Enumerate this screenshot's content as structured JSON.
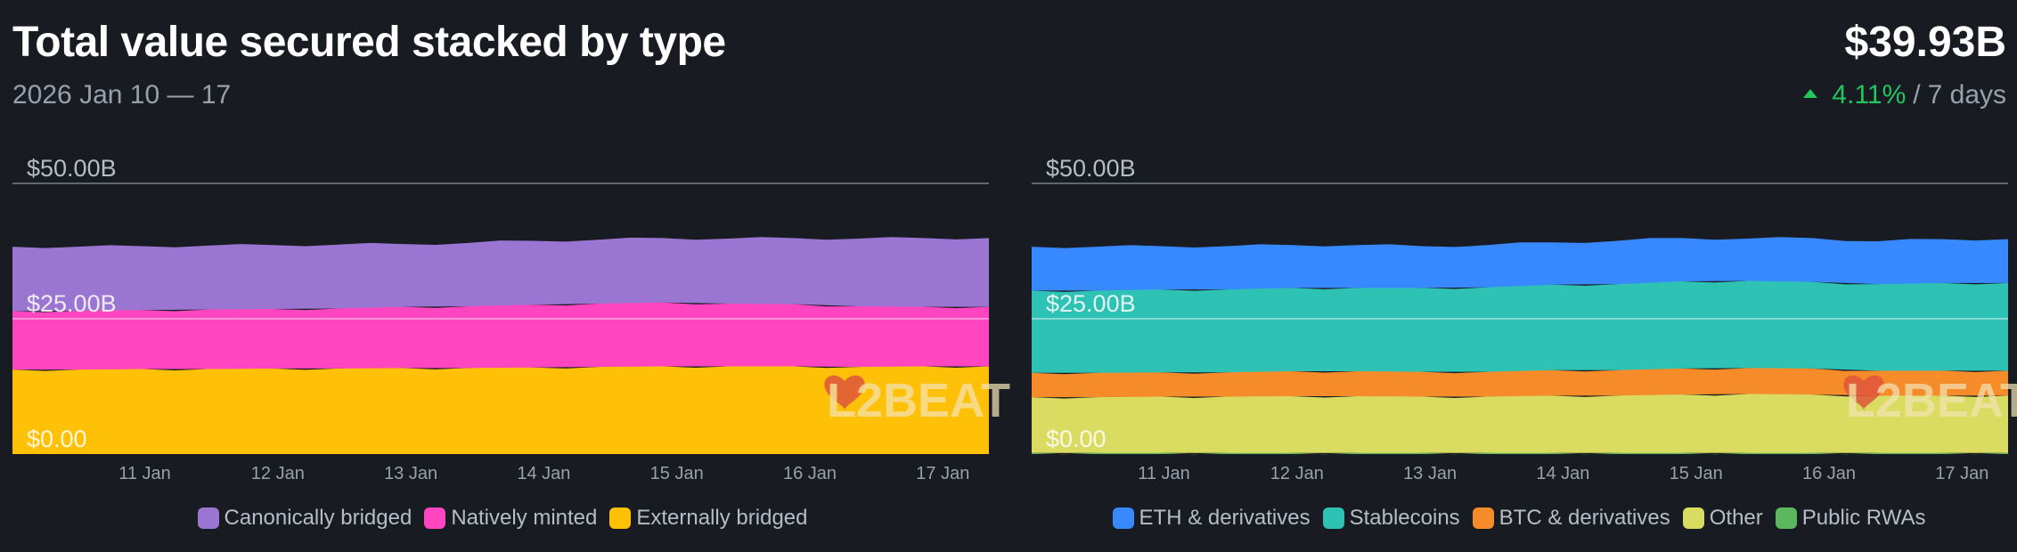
{
  "header": {
    "title": "Total value secured stacked by type",
    "date_range": "2026 Jan 10 — 17",
    "total_value": "$39.93B",
    "change_pct": "4.11%",
    "separator": "/",
    "change_period": "7 days",
    "change_icon": "triangle-up-icon",
    "change_color": "#22c55e"
  },
  "watermark": "L2BEAT",
  "chart_data": [
    {
      "type": "area",
      "stacked": true,
      "x": [
        "2026-01-10",
        "2026-01-10.5",
        "2026-01-11",
        "2026-01-11.5",
        "2026-01-12",
        "2026-01-12.5",
        "2026-01-13",
        "2026-01-13.5",
        "2026-01-14",
        "2026-01-14.5",
        "2026-01-15",
        "2026-01-15.5",
        "2026-01-16",
        "2026-01-16.5",
        "2026-01-17",
        "2026-01-17.5"
      ],
      "x_tick_labels": [
        "11 Jan",
        "12 Jan",
        "13 Jan",
        "14 Jan",
        "15 Jan",
        "16 Jan",
        "17 Jan"
      ],
      "y_tick_labels": [
        "$0.00",
        "$25.00B",
        "$50.00B"
      ],
      "ylim": [
        0,
        50
      ],
      "y_unit": "B",
      "grid": true,
      "legend_position": "bottom-center",
      "series": [
        {
          "name": "Externally bridged",
          "color": "#ffc107",
          "values": [
            15.6,
            15.6,
            15.7,
            15.7,
            15.8,
            15.8,
            15.9,
            15.9,
            16.0,
            16.1,
            16.2,
            16.2,
            16.2,
            16.1,
            16.2,
            16.2
          ]
        },
        {
          "name": "Natively minted",
          "color": "#ff46c0",
          "values": [
            10.8,
            10.9,
            10.9,
            11.0,
            11.0,
            11.1,
            11.3,
            11.4,
            11.6,
            11.7,
            11.8,
            11.6,
            11.5,
            11.2,
            11.0,
            11.0
          ]
        },
        {
          "name": "Canonically bridged",
          "color": "#9a76d2",
          "values": [
            11.9,
            11.8,
            11.8,
            11.8,
            11.8,
            11.8,
            11.6,
            11.7,
            11.8,
            11.8,
            11.9,
            12.0,
            12.2,
            12.5,
            12.7,
            12.7
          ]
        }
      ]
    },
    {
      "type": "area",
      "stacked": true,
      "x": [
        "2026-01-10",
        "2026-01-10.5",
        "2026-01-11",
        "2026-01-11.5",
        "2026-01-12",
        "2026-01-12.5",
        "2026-01-13",
        "2026-01-13.5",
        "2026-01-14",
        "2026-01-14.5",
        "2026-01-15",
        "2026-01-15.5",
        "2026-01-16",
        "2026-01-16.5",
        "2026-01-17",
        "2026-01-17.5"
      ],
      "x_tick_labels": [
        "11 Jan",
        "12 Jan",
        "13 Jan",
        "14 Jan",
        "15 Jan",
        "16 Jan",
        "17 Jan"
      ],
      "y_tick_labels": [
        "$0.00",
        "$25.00B",
        "$50.00B"
      ],
      "ylim": [
        0,
        50
      ],
      "y_unit": "B",
      "grid": true,
      "legend_position": "bottom-center",
      "series": [
        {
          "name": "Public RWAs",
          "color": "#5cb85c",
          "values": [
            0.2,
            0.2,
            0.2,
            0.2,
            0.2,
            0.2,
            0.2,
            0.2,
            0.2,
            0.2,
            0.2,
            0.2,
            0.2,
            0.2,
            0.2,
            0.2
          ]
        },
        {
          "name": "Other",
          "color": "#d9dc60",
          "values": [
            10.3,
            10.3,
            10.4,
            10.4,
            10.5,
            10.5,
            10.4,
            10.4,
            10.6,
            10.6,
            10.8,
            10.9,
            10.8,
            10.6,
            10.6,
            10.6
          ]
        },
        {
          "name": "BTC & derivatives",
          "color": "#f68b2a",
          "values": [
            4.5,
            4.5,
            4.5,
            4.5,
            4.6,
            4.6,
            4.6,
            4.6,
            4.7,
            4.7,
            4.8,
            4.8,
            4.8,
            4.6,
            4.6,
            4.6
          ]
        },
        {
          "name": "Stablecoins",
          "color": "#2ec2b4",
          "values": [
            15.2,
            15.2,
            15.3,
            15.3,
            15.4,
            15.4,
            15.5,
            15.6,
            15.8,
            15.9,
            16.1,
            16.1,
            16.0,
            16.0,
            16.2,
            16.2
          ]
        },
        {
          "name": "ETH & derivatives",
          "color": "#3889ff",
          "values": [
            8.1,
            8.1,
            8.0,
            8.0,
            7.9,
            7.9,
            7.7,
            7.8,
            7.8,
            8.0,
            8.0,
            7.8,
            8.1,
            7.9,
            8.1,
            8.1
          ]
        }
      ]
    }
  ]
}
